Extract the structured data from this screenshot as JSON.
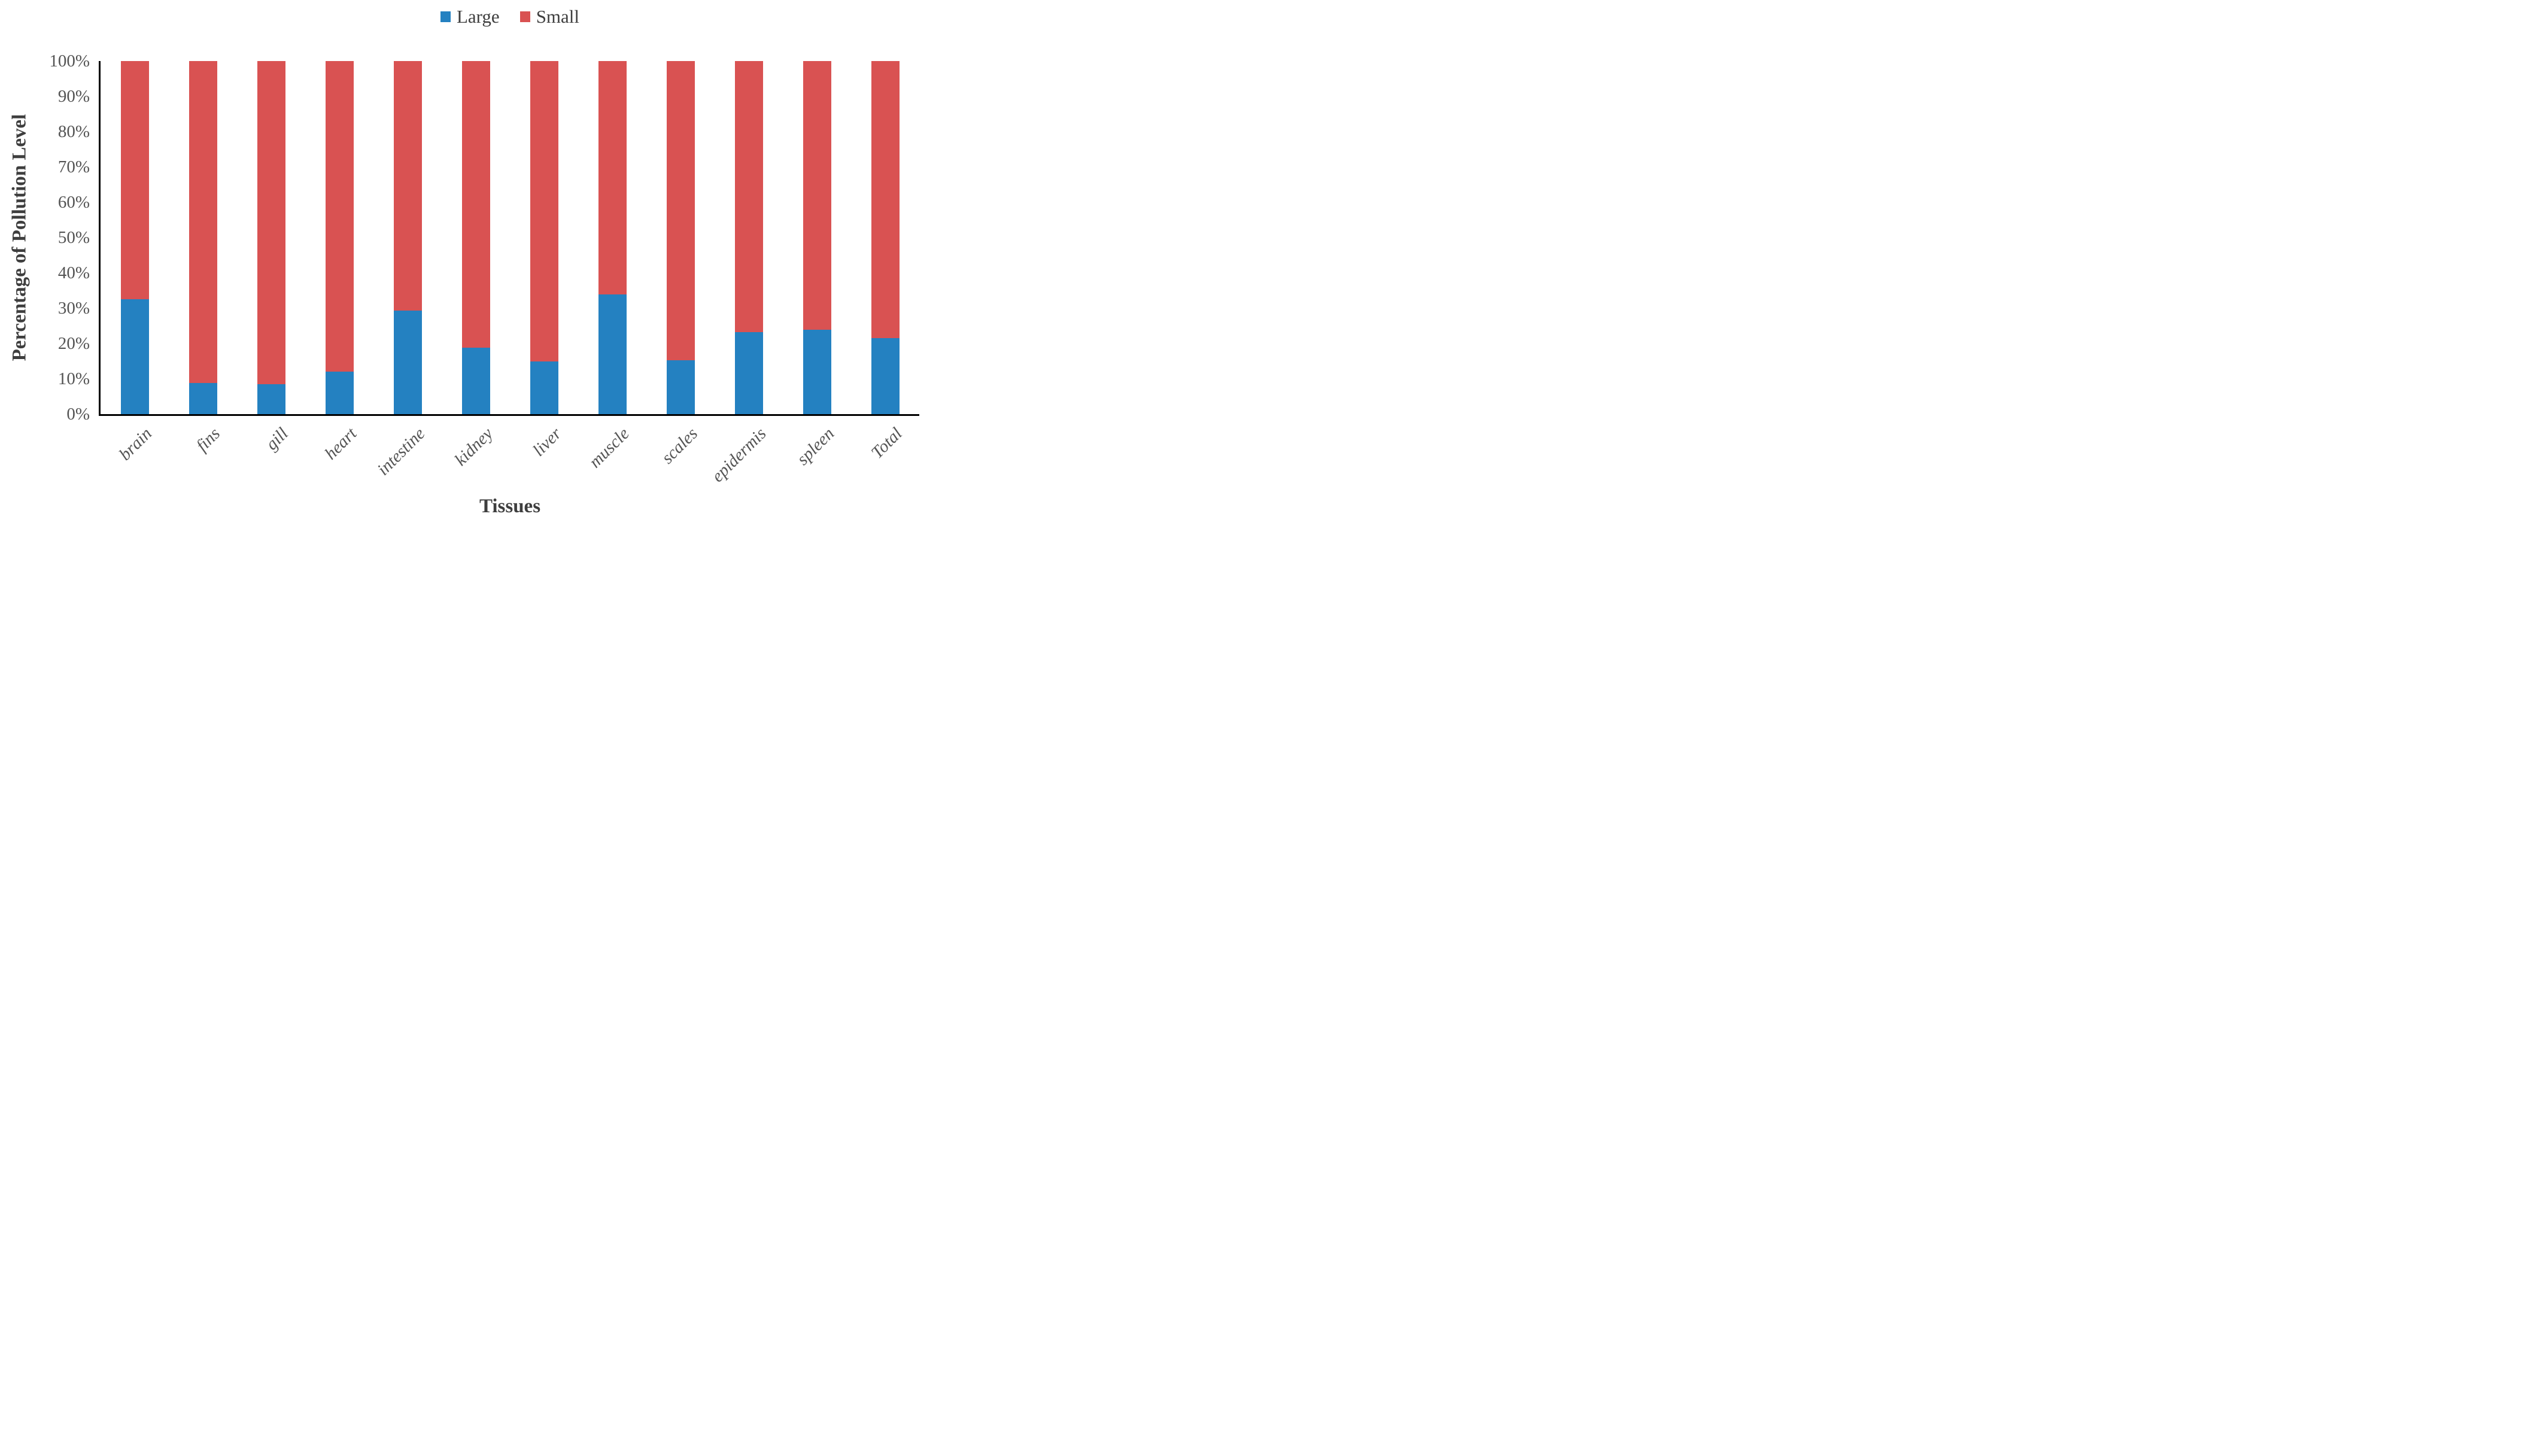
{
  "chart_data": {
    "type": "bar",
    "stacked": true,
    "stack_mode": "percent",
    "title": "",
    "xlabel": "Tissues",
    "ylabel": "Percentage of Pollution Level",
    "categories": [
      "brain",
      "fins",
      "gill",
      "heart",
      "intestine",
      "kidney",
      "liver",
      "muscle",
      "scales",
      "epidermis",
      "spleen",
      "Total"
    ],
    "series": [
      {
        "name": "Large",
        "color": "#2481C1",
        "values": [
          32.5,
          8.8,
          8.5,
          12.0,
          29.4,
          18.8,
          14.9,
          33.9,
          15.3,
          23.2,
          23.9,
          21.5
        ]
      },
      {
        "name": "Small",
        "color": "#D95252",
        "values": [
          67.5,
          91.2,
          91.5,
          88.0,
          70.6,
          81.2,
          85.1,
          66.1,
          84.7,
          76.8,
          76.1,
          78.5
        ]
      }
    ],
    "y_ticks": [
      "100%",
      "90%",
      "80%",
      "70%",
      "60%",
      "50%",
      "40%",
      "30%",
      "20%",
      "10%",
      "0%"
    ],
    "ylim": [
      0,
      100
    ],
    "y_tick_step": 10,
    "legend_position": "top-center",
    "grid": false,
    "axis_color": "#000000",
    "tick_text_color": "#545454",
    "title_text_color": "#3e3e3e"
  }
}
